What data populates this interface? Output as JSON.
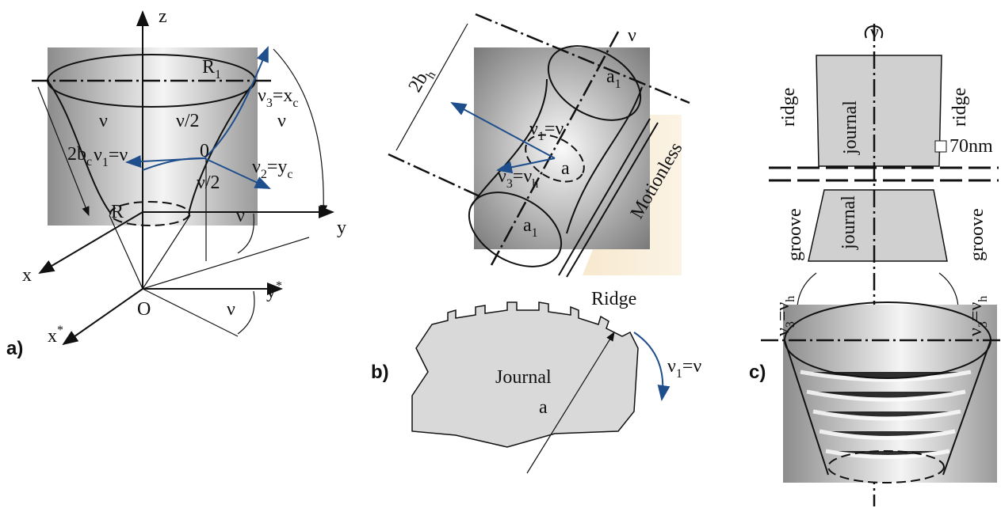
{
  "panel_a": {
    "tag": "a)",
    "labels": [
      [
        "z"
      ],
      [
        "R",
        "1"
      ],
      [
        "ν",
        "3",
        "=x",
        "c"
      ],
      [
        "ν"
      ],
      [
        "ν"
      ],
      [
        "2b",
        "c"
      ],
      [
        "ν",
        "1",
        "=ν"
      ],
      [
        "ν/2"
      ],
      [
        "0"
      ],
      [
        "ν",
        "2",
        "=y",
        "c"
      ],
      [
        "ν/2"
      ],
      [
        "R"
      ],
      [
        "y"
      ],
      [
        "ν"
      ],
      [
        "x"
      ],
      [
        "O"
      ],
      [
        "ν"
      ]
    ],
    "sup_labels": [
      [
        "y",
        "*"
      ],
      [
        "x",
        "*"
      ]
    ]
  },
  "panel_b": {
    "tag": "b)",
    "labels": [
      [
        "2b",
        "h"
      ],
      [
        "ν"
      ],
      [
        "a",
        "1"
      ],
      [
        "ν",
        "1",
        "=ν"
      ],
      [
        "ν",
        "3",
        "=ν",
        "h"
      ],
      [
        "a"
      ],
      [
        "a",
        "1"
      ],
      [
        "Motionless"
      ],
      [
        "Ridge"
      ],
      [
        "Journal"
      ],
      [
        "a"
      ],
      [
        "ν",
        "1",
        "=ν"
      ]
    ]
  },
  "panel_c": {
    "tag": "c)",
    "labels": [
      [
        "ν"
      ],
      [
        "ridge"
      ],
      [
        "journal"
      ],
      [
        "ridge"
      ],
      [
        "70nm"
      ],
      [
        "journal"
      ],
      [
        "groove"
      ],
      [
        "groove"
      ],
      [
        "ν",
        "3",
        "=ν",
        "h"
      ],
      [
        "ν",
        "3",
        "=ν",
        "h"
      ]
    ]
  }
}
